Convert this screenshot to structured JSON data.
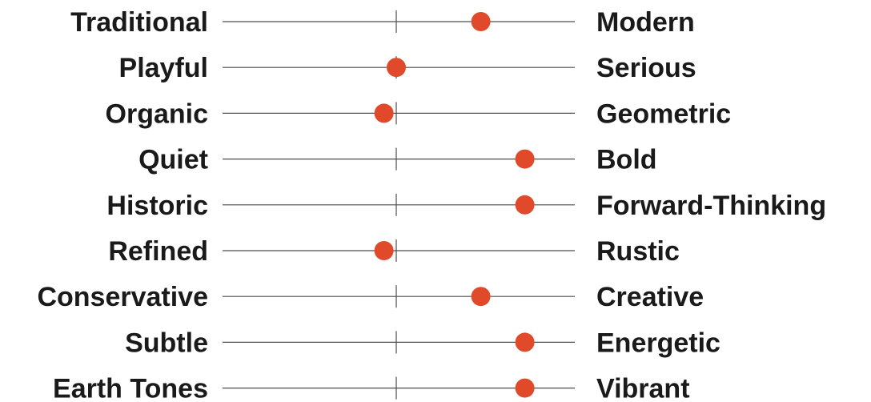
{
  "colors": {
    "dot": "#e04a2a",
    "line": "#4d4d4d",
    "text": "#1a1a1a"
  },
  "chart_data": {
    "type": "scatter",
    "description_scale": "each row is a spectrum from the left attribute to the right attribute; value is dot position from -1 (left end) to +1 (right end), 0 at the center tick",
    "xlim": [
      -1,
      1
    ],
    "rows": [
      {
        "left": "Traditional",
        "right": "Modern",
        "value": 0.48
      },
      {
        "left": "Playful",
        "right": "Serious",
        "value": 0.0
      },
      {
        "left": "Organic",
        "right": "Geometric",
        "value": -0.07
      },
      {
        "left": "Quiet",
        "right": "Bold",
        "value": 0.73
      },
      {
        "left": "Historic",
        "right": "Forward-Thinking",
        "value": 0.73
      },
      {
        "left": "Refined",
        "right": "Rustic",
        "value": -0.07
      },
      {
        "left": "Conservative",
        "right": "Creative",
        "value": 0.48
      },
      {
        "left": "Subtle",
        "right": "Energetic",
        "value": 0.73
      },
      {
        "left": "Earth Tones",
        "right": "Vibrant",
        "value": 0.73
      }
    ]
  }
}
